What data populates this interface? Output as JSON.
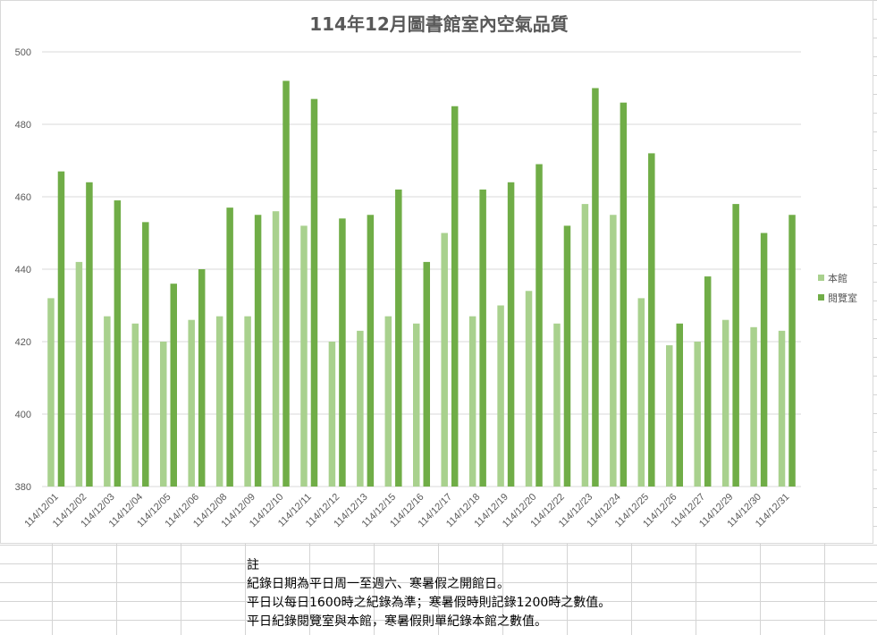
{
  "notes": {
    "heading": "註",
    "lines": [
      "紀錄日期為平日周一至週六、寒暑假之開館日。",
      "平日以每日1600時之紀錄為準；寒暑假時則記錄1200時之數值。",
      "平日紀錄閱覽室與本館，寒暑假則單紀錄本館之數值。"
    ]
  },
  "chart_data": {
    "type": "bar",
    "title": "114年12月圖書館室內空氣品質",
    "xlabel": "",
    "ylabel": "",
    "ylim": [
      380,
      500
    ],
    "yticks": [
      380,
      400,
      420,
      440,
      460,
      480,
      500
    ],
    "grid": true,
    "legend_position": "right",
    "categories": [
      "114/12/01",
      "114/12/02",
      "114/12/03",
      "114/12/04",
      "114/12/05",
      "114/12/06",
      "114/12/08",
      "114/12/09",
      "114/12/10",
      "114/12/11",
      "114/12/12",
      "114/12/13",
      "114/12/15",
      "114/12/16",
      "114/12/17",
      "114/12/18",
      "114/12/19",
      "114/12/20",
      "114/12/22",
      "114/12/23",
      "114/12/24",
      "114/12/25",
      "114/12/26",
      "114/12/27",
      "114/12/29",
      "114/12/30",
      "114/12/31"
    ],
    "series": [
      {
        "name": "本館",
        "color": "#a9d18e",
        "values": [
          432,
          442,
          427,
          425,
          420,
          426,
          427,
          427,
          456,
          452,
          420,
          423,
          427,
          425,
          450,
          427,
          430,
          434,
          425,
          458,
          455,
          432,
          419,
          420,
          426,
          424,
          423
        ]
      },
      {
        "name": "閱覽室",
        "color": "#70ad47",
        "values": [
          467,
          464,
          459,
          453,
          436,
          440,
          457,
          455,
          492,
          487,
          454,
          455,
          462,
          442,
          485,
          462,
          464,
          469,
          452,
          490,
          486,
          472,
          425,
          438,
          458,
          450,
          455
        ]
      }
    ]
  }
}
